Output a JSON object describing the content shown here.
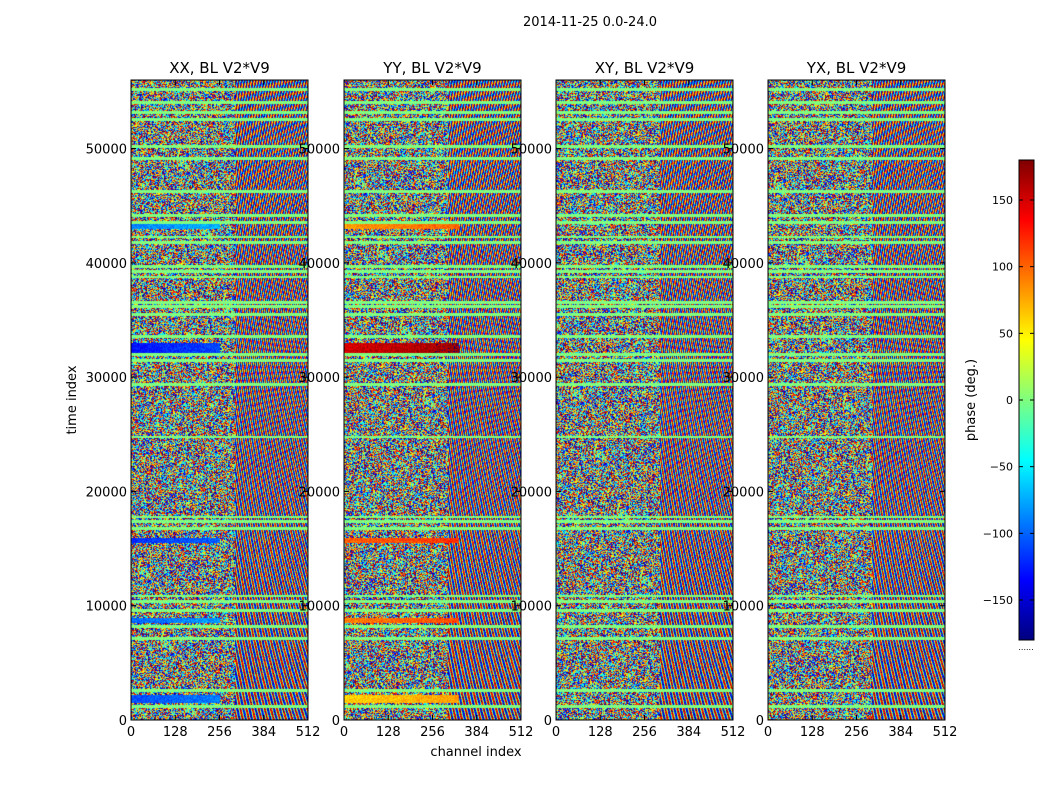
{
  "figure": {
    "suptitle": "2014-11-25 0.0-24.0",
    "xlabel": "channel index",
    "ylabel": "time index",
    "colorbar_label": "phase (deg.)",
    "colorbar_footer": "......"
  },
  "chart_data": [
    {
      "type": "heatmap",
      "title": "XX, BL V2*V9",
      "xlim": [
        0,
        512
      ],
      "ylim": [
        0,
        56000
      ],
      "xticks": [
        0,
        128,
        256,
        384,
        512
      ],
      "yticks": [
        0,
        10000,
        20000,
        30000,
        40000,
        50000
      ],
      "ytick_labels_visible": true,
      "xlabel": "",
      "ylabel": "time index",
      "bands": [
        {
          "y0": 1500,
          "y1": 2200,
          "x1": 256,
          "phase": -110
        },
        {
          "y0": 8500,
          "y1": 9000,
          "x1": 256,
          "phase": -100
        },
        {
          "y0": 15500,
          "y1": 16000,
          "x1": 256,
          "phase": -120
        },
        {
          "y0": 32000,
          "y1": 33000,
          "x1": 256,
          "phase": -130
        },
        {
          "y0": 43000,
          "y1": 43500,
          "x1": 256,
          "phase": -90
        }
      ]
    },
    {
      "type": "heatmap",
      "title": "YY, BL V2*V9",
      "xlim": [
        0,
        512
      ],
      "ylim": [
        0,
        56000
      ],
      "xticks": [
        0,
        128,
        256,
        384,
        512
      ],
      "yticks": [
        0,
        10000,
        20000,
        30000,
        40000,
        50000
      ],
      "ytick_labels_visible": true,
      "xlabel": "channel index",
      "ylabel": "",
      "bands": [
        {
          "y0": 1500,
          "y1": 2200,
          "x1": 330,
          "phase": 60
        },
        {
          "y0": 8500,
          "y1": 9000,
          "x1": 330,
          "phase": 90
        },
        {
          "y0": 15500,
          "y1": 16000,
          "x1": 330,
          "phase": 100
        },
        {
          "y0": 32000,
          "y1": 33000,
          "x1": 330,
          "phase": 150
        },
        {
          "y0": 43000,
          "y1": 43500,
          "x1": 330,
          "phase": 80
        }
      ]
    },
    {
      "type": "heatmap",
      "title": "XY, BL V2*V9",
      "xlim": [
        0,
        512
      ],
      "ylim": [
        0,
        56000
      ],
      "xticks": [
        0,
        128,
        256,
        384,
        512
      ],
      "yticks": [
        0,
        10000,
        20000,
        30000,
        40000,
        50000
      ],
      "ytick_labels_visible": true,
      "xlabel": "",
      "ylabel": "",
      "bands": []
    },
    {
      "type": "heatmap",
      "title": "YX, BL V2*V9",
      "xlim": [
        0,
        512
      ],
      "ylim": [
        0,
        56000
      ],
      "xticks": [
        0,
        128,
        256,
        384,
        512
      ],
      "yticks": [
        0,
        10000,
        20000,
        30000,
        40000,
        50000
      ],
      "ytick_labels_visible": true,
      "xlabel": "",
      "ylabel": "",
      "bands": []
    }
  ],
  "colorbar": {
    "type": "colorbar",
    "colormap": "jet",
    "vmin": -180,
    "vmax": 180,
    "ticks": [
      -150,
      -100,
      -50,
      0,
      50,
      100,
      150
    ],
    "tick_labels": [
      "−150",
      "−100",
      "−50",
      "0",
      "50",
      "100",
      "150"
    ],
    "label": "phase (deg.)"
  },
  "flagged_rows": [
    1200,
    2600,
    7200,
    8200,
    9600,
    10400,
    10900,
    16800,
    17400,
    17800,
    24800,
    29400,
    31500,
    32000,
    33600,
    35500,
    36200,
    36600,
    38800,
    39300,
    39700,
    41800,
    42300,
    43600,
    44200,
    46300,
    49200,
    50200,
    52600,
    53200,
    54100,
    55200
  ]
}
